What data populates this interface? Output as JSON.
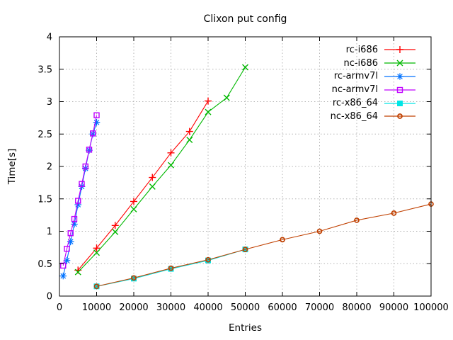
{
  "chart_data": {
    "type": "line",
    "title": "Clixon put config",
    "xlabel": "Entries",
    "ylabel": "Time[s]",
    "xlim": [
      0,
      100000
    ],
    "ylim": [
      0,
      4
    ],
    "x_ticks": [
      0,
      10000,
      20000,
      30000,
      40000,
      50000,
      60000,
      70000,
      80000,
      90000,
      100000
    ],
    "y_ticks": [
      0,
      0.5,
      1,
      1.5,
      2,
      2.5,
      3,
      3.5,
      4
    ],
    "grid": true,
    "legend_position": "inside-top-right",
    "colors": {
      "grid": "#b4b4b4",
      "border": "#000000",
      "background": "#ffffff"
    },
    "series": [
      {
        "name": "rc-i686",
        "color": "#ff0000",
        "marker": "plus",
        "x": [
          5000,
          10000,
          15000,
          20000,
          25000,
          30000,
          35000,
          40000
        ],
        "y": [
          0.4,
          0.74,
          1.09,
          1.46,
          1.83,
          2.21,
          2.54,
          3.01
        ]
      },
      {
        "name": "nc-i686",
        "color": "#00b800",
        "marker": "cross",
        "x": [
          5000,
          10000,
          15000,
          20000,
          25000,
          30000,
          35000,
          40000,
          45000,
          50000
        ],
        "y": [
          0.37,
          0.67,
          0.99,
          1.34,
          1.69,
          2.02,
          2.41,
          2.84,
          3.06,
          3.53
        ]
      },
      {
        "name": "rc-armv7l",
        "color": "#0072ff",
        "marker": "star",
        "x": [
          1000,
          2000,
          3000,
          4000,
          5000,
          6000,
          7000,
          8000,
          9000,
          10000
        ],
        "y": [
          0.31,
          0.55,
          0.84,
          1.11,
          1.41,
          1.69,
          1.97,
          2.25,
          2.5,
          2.68
        ]
      },
      {
        "name": "nc-armv7l",
        "color": "#c000ff",
        "marker": "square-open",
        "x": [
          1000,
          2000,
          3000,
          4000,
          5000,
          6000,
          7000,
          8000,
          9000,
          10000
        ],
        "y": [
          0.47,
          0.73,
          0.97,
          1.19,
          1.47,
          1.73,
          2.0,
          2.26,
          2.51,
          2.79
        ]
      },
      {
        "name": "rc-x86_64",
        "color": "#00e5e5",
        "marker": "square-filled",
        "x": [
          10000,
          20000,
          30000,
          40000,
          50000
        ],
        "y": [
          0.15,
          0.27,
          0.42,
          0.55,
          0.72
        ]
      },
      {
        "name": "nc-x86_64",
        "color": "#c04000",
        "marker": "circle-open",
        "x": [
          10000,
          20000,
          30000,
          40000,
          50000,
          60000,
          70000,
          80000,
          90000,
          100000
        ],
        "y": [
          0.15,
          0.28,
          0.43,
          0.56,
          0.72,
          0.87,
          1.0,
          1.17,
          1.28,
          1.42
        ]
      }
    ]
  }
}
